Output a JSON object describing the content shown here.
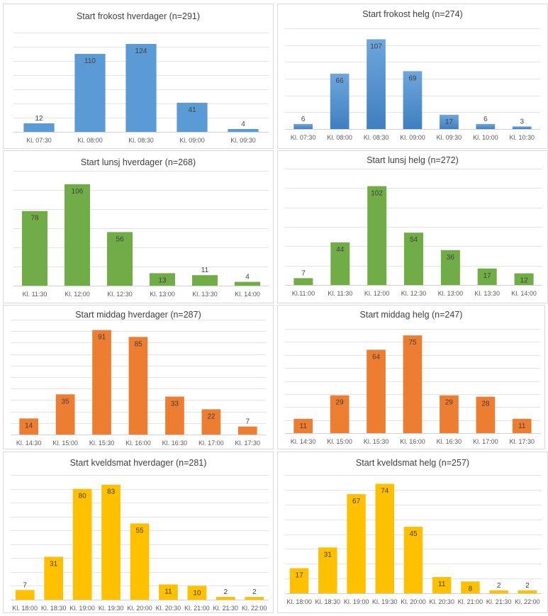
{
  "chart_data": [
    {
      "id": "frokost-hverdager",
      "type": "bar",
      "title": "Start frokost hverdager (n=291)",
      "categories": [
        "Kl. 07:30",
        "Kl. 08:00",
        "Kl. 08:30",
        "Kl. 09:00",
        "Kl. 09:30"
      ],
      "values": [
        12,
        110,
        124,
        41,
        4
      ],
      "color": "#5b9bd5",
      "gradient": false,
      "ylim": [
        0,
        140
      ],
      "gridlines": 7,
      "xlabel": "",
      "ylabel": "",
      "grid": true,
      "legend": "none"
    },
    {
      "id": "frokost-helg",
      "type": "bar",
      "title": "Start frokost helg (n=274)",
      "categories": [
        "Kl. 07:30",
        "Kl. 08:00",
        "Kl. 08:30",
        "Kl. 09:00",
        "Kl. 09:30",
        "Kl. 10:00",
        "Kl. 10:30"
      ],
      "values": [
        6,
        66,
        107,
        69,
        17,
        6,
        3
      ],
      "color": "#5b9bd5",
      "gradient": true,
      "ylim": [
        0,
        120
      ],
      "gridlines": 6,
      "xlabel": "",
      "ylabel": "",
      "grid": true,
      "legend": "none"
    },
    {
      "id": "lunsj-hverdager",
      "type": "bar",
      "title": "Start lunsj hverdager (n=268)",
      "categories": [
        "Kl. 11:30",
        "Kl. 12:00",
        "Kl. 12:30",
        "Kl. 13:00",
        "Kl. 13:30",
        "Kl. 14:00"
      ],
      "values": [
        78,
        106,
        56,
        13,
        11,
        4
      ],
      "color": "#70ad47",
      "gradient": false,
      "ylim": [
        0,
        120
      ],
      "gridlines": 6,
      "xlabel": "",
      "ylabel": "",
      "grid": true,
      "legend": "none"
    },
    {
      "id": "lunsj-helg",
      "type": "bar",
      "title": "Start lunsj helg (n=272)",
      "categories": [
        "Kl.11:00",
        "Kl. 11:30",
        "Kl. 12:00",
        "Kl. 12:30",
        "Kl. 13:00",
        "Kl. 13:30",
        "Kl. 14:00"
      ],
      "values": [
        7,
        44,
        102,
        54,
        36,
        17,
        12
      ],
      "color": "#70ad47",
      "gradient": false,
      "ylim": [
        0,
        120
      ],
      "gridlines": 6,
      "xlabel": "",
      "ylabel": "",
      "grid": true,
      "legend": "none"
    },
    {
      "id": "middag-hverdager",
      "type": "bar",
      "title": "Start middag hverdager (n=287)",
      "categories": [
        "Kl. 14:30",
        "Kl. 15:00",
        "Kl. 15:30",
        "Kl. 16:00",
        "Kl. 16:30",
        "Kl. 17:00",
        "Kl. 17:30"
      ],
      "values": [
        14,
        35,
        91,
        85,
        33,
        22,
        7
      ],
      "color": "#ed7d31",
      "gradient": false,
      "ylim": [
        0,
        100
      ],
      "gridlines": 10,
      "xlabel": "",
      "ylabel": "",
      "grid": true,
      "legend": "none"
    },
    {
      "id": "middag-helg",
      "type": "bar",
      "title": "Start middag helg (n=247)",
      "categories": [
        "Kl. 14:30",
        "Kl. 15:00",
        "Kl. 15:30",
        "Kl. 16:00",
        "Kl. 16:30",
        "Kl. 17:00",
        "Kl. 17:30"
      ],
      "values": [
        11,
        29,
        64,
        75,
        29,
        28,
        11
      ],
      "color": "#ed7d31",
      "gradient": false,
      "ylim": [
        0,
        80
      ],
      "gridlines": 8,
      "xlabel": "",
      "ylabel": "",
      "grid": true,
      "legend": "none"
    },
    {
      "id": "kveldsmat-hverdager",
      "type": "bar",
      "title": "Start kveldsmat hverdager (n=281)",
      "categories": [
        "Kl. 18:00",
        "Kl. 18:30",
        "Kl. 19:00",
        "Kl. 19:30",
        "Kl. 20:00",
        "Kl. 20:30",
        "Kl. 21:00",
        "Kl. 21:30",
        "Kl. 22:00"
      ],
      "values": [
        7,
        31,
        80,
        83,
        55,
        11,
        10,
        2,
        2
      ],
      "color": "#ffc000",
      "gradient": false,
      "ylim": [
        0,
        90
      ],
      "gridlines": 9,
      "xlabel": "",
      "ylabel": "",
      "grid": true,
      "legend": "none"
    },
    {
      "id": "kveldsmat-helg",
      "type": "bar",
      "title": "Start kveldsmat helg (n=257)",
      "categories": [
        "Kl. 18:00",
        "Kl. 18:30",
        "Kl. 19:00",
        "Kl. 19:30",
        "Kl. 20:00",
        "Kl. 20:30",
        "Kl. 21:00",
        "Kl. 21:30",
        "Kl. 22:00"
      ],
      "values": [
        17,
        31,
        67,
        74,
        45,
        11,
        8,
        2,
        2
      ],
      "color": "#ffc000",
      "gradient": false,
      "ylim": [
        0,
        80
      ],
      "gridlines": 8,
      "xlabel": "",
      "ylabel": "",
      "grid": true,
      "legend": "none"
    }
  ]
}
